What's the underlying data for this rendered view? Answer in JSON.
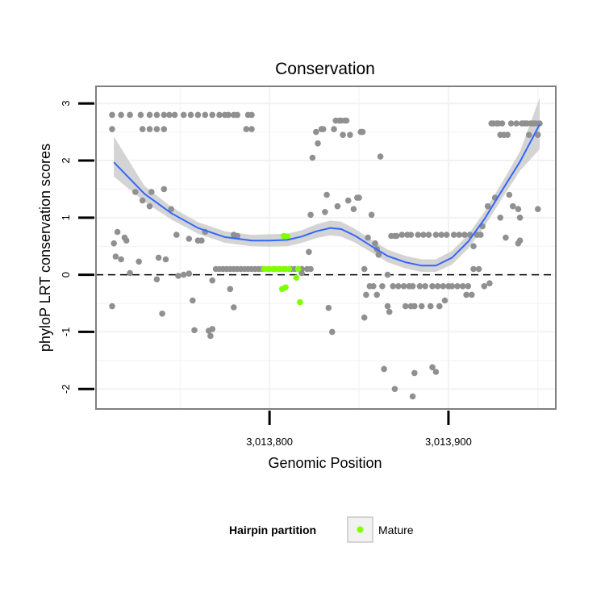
{
  "chart_data": {
    "type": "scatter",
    "title": "Conservation",
    "xlabel": "Genomic Position",
    "ylabel": "phyloP LRT conservation scores",
    "xlim": [
      3013703,
      3013960
    ],
    "ylim": [
      -2.35,
      3.3
    ],
    "x_ticks": [
      {
        "value": 3013800,
        "label": "3,013,800"
      },
      {
        "value": 3013900,
        "label": "3,013,900"
      }
    ],
    "y_ticks": [
      {
        "value": -2,
        "label": "-2"
      },
      {
        "value": -1,
        "label": "-1"
      },
      {
        "value": 0,
        "label": "0"
      },
      {
        "value": 1,
        "label": "1"
      },
      {
        "value": 2,
        "label": "2"
      },
      {
        "value": 3,
        "label": "3"
      }
    ],
    "reference_line": {
      "y": 0,
      "style": "dashed",
      "color": "#000000"
    },
    "grid": true,
    "legend": {
      "title": "Hairpin partition",
      "placement": "bottom",
      "entries": [
        {
          "label": "Mature",
          "color": "#7fff00"
        }
      ]
    },
    "series": [
      {
        "kind": "points",
        "color": "#909090",
        "points": [
          [
            3013712,
            2.8
          ],
          [
            3013717,
            2.8
          ],
          [
            3013722,
            2.8
          ],
          [
            3013728,
            2.8
          ],
          [
            3013733,
            2.8
          ],
          [
            3013737,
            2.8
          ],
          [
            3013741,
            2.8
          ],
          [
            3013744,
            2.8
          ],
          [
            3013747,
            2.8
          ],
          [
            3013752,
            2.8
          ],
          [
            3013756,
            2.8
          ],
          [
            3013760,
            2.8
          ],
          [
            3013764,
            2.8
          ],
          [
            3013768,
            2.8
          ],
          [
            3013772,
            2.8
          ],
          [
            3013775,
            2.8
          ],
          [
            3013777,
            2.8
          ],
          [
            3013780,
            2.8
          ],
          [
            3013782,
            2.8
          ],
          [
            3013788,
            2.8
          ],
          [
            3013790,
            2.8
          ],
          [
            3013712,
            2.55
          ],
          [
            3013729,
            2.55
          ],
          [
            3013733,
            2.55
          ],
          [
            3013737,
            2.55
          ],
          [
            3013741,
            2.55
          ],
          [
            3013787,
            2.55
          ],
          [
            3013790,
            2.55
          ],
          [
            3013713,
            0.55
          ],
          [
            3013715,
            0.75
          ],
          [
            3013714,
            0.32
          ],
          [
            3013717,
            0.27
          ],
          [
            3013719,
            0.65
          ],
          [
            3013720,
            0.6
          ],
          [
            3013722,
            0.03
          ],
          [
            3013725,
            1.45
          ],
          [
            3013727,
            0.23
          ],
          [
            3013729,
            1.3
          ],
          [
            3013733,
            1.2
          ],
          [
            3013734,
            1.45
          ],
          [
            3013737,
            -0.08
          ],
          [
            3013738,
            0.3
          ],
          [
            3013740,
            -0.68
          ],
          [
            3013741,
            1.5
          ],
          [
            3013742,
            0.27
          ],
          [
            3013745,
            1.15
          ],
          [
            3013748,
            0.7
          ],
          [
            3013749,
            -0.02
          ],
          [
            3013752,
            0.0
          ],
          [
            3013755,
            0.02
          ],
          [
            3013755,
            0.63
          ],
          [
            3013757,
            -0.45
          ],
          [
            3013758,
            -0.97
          ],
          [
            3013760,
            0.6
          ],
          [
            3013762,
            0.6
          ],
          [
            3013764,
            0.75
          ],
          [
            3013766,
            -0.98
          ],
          [
            3013767,
            -1.07
          ],
          [
            3013768,
            -0.95
          ],
          [
            3013768,
            -0.1
          ],
          [
            3013712,
            -0.55
          ],
          [
            3013770,
            0.1
          ],
          [
            3013772,
            0.1
          ],
          [
            3013774,
            0.1
          ],
          [
            3013776,
            0.1
          ],
          [
            3013778,
            0.1
          ],
          [
            3013780,
            0.1
          ],
          [
            3013782,
            0.1
          ],
          [
            3013784,
            0.1
          ],
          [
            3013786,
            0.1
          ],
          [
            3013788,
            0.1
          ],
          [
            3013790,
            0.1
          ],
          [
            3013792,
            0.1
          ],
          [
            3013794,
            0.1
          ],
          [
            3013796,
            0.1
          ],
          [
            3013780,
            0.7
          ],
          [
            3013782,
            0.68
          ],
          [
            3013778,
            -0.25
          ],
          [
            3013780,
            -0.57
          ],
          [
            3013812,
            0.1
          ],
          [
            3013814,
            0.1
          ],
          [
            3013816,
            0.1
          ],
          [
            3013818,
            0.1
          ],
          [
            3013821,
            0.1
          ],
          [
            3013823,
            0.1
          ],
          [
            3013818,
            0.03
          ],
          [
            3013822,
            0.4
          ],
          [
            3013823,
            1.05
          ],
          [
            3013824,
            2.05
          ],
          [
            3013826,
            2.5
          ],
          [
            3013827,
            2.3
          ],
          [
            3013829,
            2.55
          ],
          [
            3013830,
            2.55
          ],
          [
            3013831,
            1.1
          ],
          [
            3013832,
            1.4
          ],
          [
            3013833,
            -0.58
          ],
          [
            3013835,
            -1.0
          ],
          [
            3013836,
            2.55
          ],
          [
            3013837,
            2.7
          ],
          [
            3013838,
            1.2
          ],
          [
            3013839,
            2.7
          ],
          [
            3013840,
            2.7
          ],
          [
            3013841,
            2.45
          ],
          [
            3013842,
            2.7
          ],
          [
            3013843,
            2.7
          ],
          [
            3013844,
            1.3
          ],
          [
            3013845,
            2.45
          ],
          [
            3013847,
            1.15
          ],
          [
            3013849,
            1.35
          ],
          [
            3013850,
            1.35
          ],
          [
            3013851,
            2.5
          ],
          [
            3013852,
            2.5
          ],
          [
            3013853,
            -0.75
          ],
          [
            3013853,
            0.1
          ],
          [
            3013854,
            -0.35
          ],
          [
            3013855,
            0.65
          ],
          [
            3013856,
            -0.2
          ],
          [
            3013857,
            1.05
          ],
          [
            3013858,
            -0.2
          ],
          [
            3013859,
            0.55
          ],
          [
            3013860,
            0.45
          ],
          [
            3013860,
            -0.35
          ],
          [
            3013861,
            0.35
          ],
          [
            3013862,
            2.07
          ],
          [
            3013863,
            -0.2
          ],
          [
            3013864,
            -1.65
          ],
          [
            3013866,
            0.0
          ],
          [
            3013866,
            -0.55
          ],
          [
            3013867,
            -0.65
          ],
          [
            3013868,
            0.68
          ],
          [
            3013869,
            -0.2
          ],
          [
            3013870,
            0.68
          ],
          [
            3013870,
            -2.0
          ],
          [
            3013871,
            0.68
          ],
          [
            3013872,
            -0.2
          ],
          [
            3013874,
            0.7
          ],
          [
            3013875,
            -0.2
          ],
          [
            3013876,
            -0.55
          ],
          [
            3013877,
            0.7
          ],
          [
            3013878,
            -0.2
          ],
          [
            3013879,
            -0.55
          ],
          [
            3013879,
            0.7
          ],
          [
            3013880,
            -0.2
          ],
          [
            3013880,
            -2.13
          ],
          [
            3013881,
            -0.55
          ],
          [
            3013881,
            -1.72
          ],
          [
            3013883,
            0.7
          ],
          [
            3013884,
            -0.2
          ],
          [
            3013885,
            -0.55
          ],
          [
            3013886,
            0.7
          ],
          [
            3013887,
            -0.2
          ],
          [
            3013889,
            0.7
          ],
          [
            3013890,
            -0.55
          ],
          [
            3013891,
            -0.2
          ],
          [
            3013891,
            -1.62
          ],
          [
            3013893,
            0.7
          ],
          [
            3013893,
            -1.7
          ],
          [
            3013894,
            -0.2
          ],
          [
            3013895,
            -0.55
          ],
          [
            3013896,
            0.7
          ],
          [
            3013897,
            -0.2
          ],
          [
            3013898,
            -0.45
          ],
          [
            3013899,
            0.7
          ],
          [
            3013900,
            -0.2
          ],
          [
            3013902,
            -0.2
          ],
          [
            3013903,
            0.7
          ],
          [
            3013905,
            -0.2
          ],
          [
            3013906,
            0.7
          ],
          [
            3013908,
            -0.2
          ],
          [
            3013909,
            0.7
          ],
          [
            3013910,
            -0.35
          ],
          [
            3013911,
            -0.2
          ],
          [
            3013912,
            0.7
          ],
          [
            3013913,
            -0.35
          ],
          [
            3013914,
            0.1
          ],
          [
            3013914,
            0.5
          ],
          [
            3013916,
            0.7
          ],
          [
            3013917,
            0.1
          ],
          [
            3013918,
            0.7
          ],
          [
            3013919,
            0.85
          ],
          [
            3013920,
            -0.2
          ],
          [
            3013922,
            1.2
          ],
          [
            3013923,
            -0.15
          ],
          [
            3013924,
            2.65
          ],
          [
            3013925,
            2.65
          ],
          [
            3013926,
            1.35
          ],
          [
            3013927,
            2.65
          ],
          [
            3013928,
            2.65
          ],
          [
            3013929,
            2.45
          ],
          [
            3013929,
            1.0
          ],
          [
            3013930,
            2.65
          ],
          [
            3013931,
            2.45
          ],
          [
            3013932,
            0.65
          ],
          [
            3013933,
            2.45
          ],
          [
            3013934,
            1.4
          ],
          [
            3013935,
            2.65
          ],
          [
            3013936,
            1.2
          ],
          [
            3013938,
            2.65
          ],
          [
            3013939,
            0.55
          ],
          [
            3013939,
            1.15
          ],
          [
            3013940,
            0.6
          ],
          [
            3013940,
            1.0
          ],
          [
            3013941,
            2.65
          ],
          [
            3013942,
            2.65
          ],
          [
            3013943,
            2.65
          ],
          [
            3013944,
            2.65
          ],
          [
            3013945,
            2.45
          ],
          [
            3013946,
            2.65
          ],
          [
            3013947,
            2.65
          ],
          [
            3013948,
            2.65
          ],
          [
            3013949,
            2.65
          ],
          [
            3013950,
            1.15
          ],
          [
            3013950,
            2.45
          ],
          [
            3013951,
            2.65
          ]
        ]
      },
      {
        "kind": "points",
        "name": "Mature",
        "color": "#7fff00",
        "points": [
          [
            3013797,
            0.1
          ],
          [
            3013799,
            0.1
          ],
          [
            3013800,
            0.1
          ],
          [
            3013802,
            0.1
          ],
          [
            3013803,
            0.1
          ],
          [
            3013805,
            0.1
          ],
          [
            3013806,
            0.1
          ],
          [
            3013808,
            0.1
          ],
          [
            3013809,
            0.1
          ],
          [
            3013811,
            0.1
          ],
          [
            3013808,
            0.68
          ],
          [
            3013810,
            0.67
          ],
          [
            3013807,
            -0.25
          ],
          [
            3013809,
            -0.22
          ],
          [
            3013815,
            -0.05
          ],
          [
            3013817,
            -0.48
          ],
          [
            3013816,
            0.1
          ]
        ]
      },
      {
        "kind": "smooth",
        "color": "#3366ff",
        "band_color": "#cccccc",
        "points": [
          {
            "x": 3013713,
            "y": 1.97,
            "lo": 1.72,
            "hi": 2.42
          },
          {
            "x": 3013730,
            "y": 1.42,
            "lo": 1.28,
            "hi": 1.56
          },
          {
            "x": 3013745,
            "y": 1.08,
            "lo": 0.97,
            "hi": 1.19
          },
          {
            "x": 3013760,
            "y": 0.82,
            "lo": 0.72,
            "hi": 0.92
          },
          {
            "x": 3013775,
            "y": 0.66,
            "lo": 0.56,
            "hi": 0.76
          },
          {
            "x": 3013790,
            "y": 0.6,
            "lo": 0.5,
            "hi": 0.7
          },
          {
            "x": 3013800,
            "y": 0.6,
            "lo": 0.49,
            "hi": 0.71
          },
          {
            "x": 3013810,
            "y": 0.61,
            "lo": 0.5,
            "hi": 0.72
          },
          {
            "x": 3013818,
            "y": 0.67,
            "lo": 0.56,
            "hi": 0.78
          },
          {
            "x": 3013826,
            "y": 0.76,
            "lo": 0.64,
            "hi": 0.88
          },
          {
            "x": 3013834,
            "y": 0.82,
            "lo": 0.69,
            "hi": 0.95
          },
          {
            "x": 3013840,
            "y": 0.8,
            "lo": 0.67,
            "hi": 0.93
          },
          {
            "x": 3013848,
            "y": 0.68,
            "lo": 0.56,
            "hi": 0.8
          },
          {
            "x": 3013857,
            "y": 0.5,
            "lo": 0.39,
            "hi": 0.61
          },
          {
            "x": 3013866,
            "y": 0.33,
            "lo": 0.22,
            "hi": 0.44
          },
          {
            "x": 3013876,
            "y": 0.22,
            "lo": 0.11,
            "hi": 0.33
          },
          {
            "x": 3013885,
            "y": 0.16,
            "lo": 0.05,
            "hi": 0.27
          },
          {
            "x": 3013893,
            "y": 0.16,
            "lo": 0.05,
            "hi": 0.27
          },
          {
            "x": 3013902,
            "y": 0.3,
            "lo": 0.18,
            "hi": 0.42
          },
          {
            "x": 3013911,
            "y": 0.58,
            "lo": 0.46,
            "hi": 0.7
          },
          {
            "x": 3013920,
            "y": 0.97,
            "lo": 0.84,
            "hi": 1.1
          },
          {
            "x": 3013930,
            "y": 1.48,
            "lo": 1.34,
            "hi": 1.62
          },
          {
            "x": 3013940,
            "y": 1.98,
            "lo": 1.82,
            "hi": 2.16
          },
          {
            "x": 3013951,
            "y": 2.63,
            "lo": 2.2,
            "hi": 3.1
          }
        ]
      }
    ]
  }
}
